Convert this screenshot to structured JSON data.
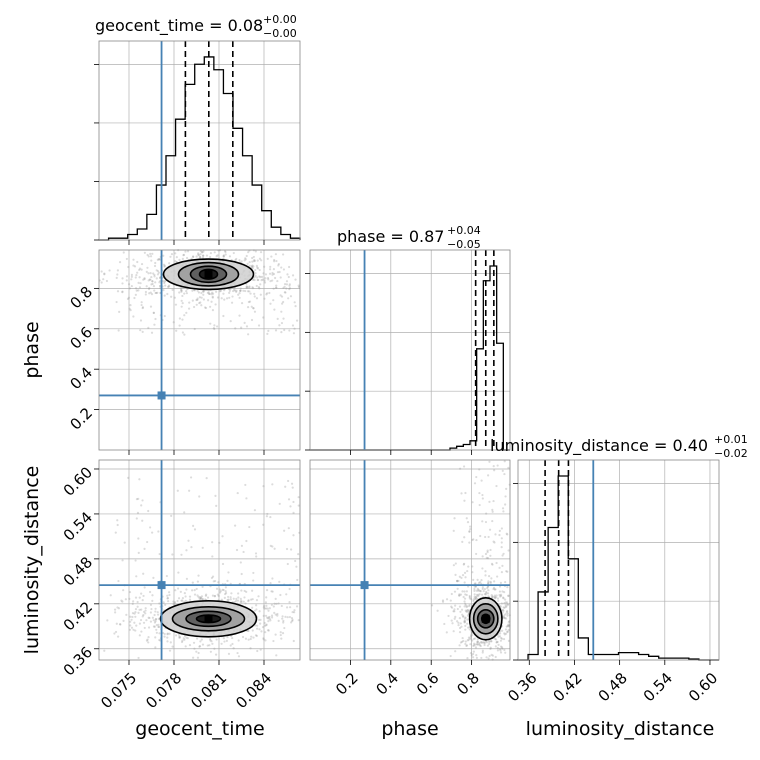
{
  "chart_data": {
    "type": "corner",
    "parameters": [
      {
        "name": "geocent_time",
        "label": "geocent_time",
        "title_name": "geocent_time",
        "median": "0.08",
        "plus": "+0.00",
        "minus": "−0.00",
        "range": [
          0.073,
          0.0864
        ],
        "ticks": [
          0.075,
          0.078,
          0.081,
          0.084
        ],
        "tick_labels": [
          "0.075",
          "0.078",
          "0.081",
          "0.084"
        ],
        "truth": 0.07717,
        "quantiles": [
          0.07876,
          0.08032,
          0.08192
        ],
        "hist_counts": [
          0,
          0.01,
          0.01,
          0.03,
          0.06,
          0.14,
          0.3,
          0.46,
          0.66,
          0.85,
          0.96,
          1.0,
          0.93,
          0.8,
          0.61,
          0.46,
          0.3,
          0.16,
          0.07,
          0.03,
          0.01
        ]
      },
      {
        "name": "phase",
        "label": "phase",
        "title_name": "phase",
        "median": "0.87",
        "plus": "+0.04",
        "minus": "−0.05",
        "range": [
          0.0,
          0.99
        ],
        "ticks_x": [
          0.2,
          0.4,
          0.6,
          0.8
        ],
        "tick_labels_x": [
          "0.2",
          "0.4",
          "0.6",
          "0.8"
        ],
        "ticks_y": [
          0.2,
          0.4,
          0.6,
          0.8
        ],
        "tick_labels_y": [
          "0.2",
          "0.4",
          "0.6",
          "0.8"
        ],
        "truth": 0.27,
        "quantiles": [
          0.82,
          0.87,
          0.91
        ],
        "hist_counts": [
          0,
          0,
          0,
          0,
          0,
          0,
          0,
          0,
          0,
          0,
          0,
          0,
          0,
          0,
          0,
          0,
          0,
          0,
          0,
          0,
          0,
          0.01,
          0.02,
          0.03,
          0.05,
          0.55,
          0.92,
          1.0,
          0.58,
          0
        ]
      },
      {
        "name": "luminosity_distance",
        "label": "luminosity_distance",
        "title_name": "luminosity_distance",
        "median": "0.40",
        "plus": "+0.01",
        "minus": "−0.02",
        "range": [
          0.345,
          0.612
        ],
        "ticks": [
          0.36,
          0.42,
          0.48,
          0.54,
          0.6
        ],
        "tick_labels": [
          "0.36",
          "0.42",
          "0.48",
          "0.54",
          "0.60"
        ],
        "truth": 0.445,
        "quantiles": [
          0.381,
          0.399,
          0.412
        ],
        "hist_counts": [
          0,
          0.03,
          0.37,
          0.72,
          1.0,
          0.55,
          0.12,
          0.03,
          0.03,
          0.03,
          0.04,
          0.04,
          0.03,
          0.02,
          0.01,
          0.01,
          0.01,
          0.005,
          0,
          0
        ]
      }
    ],
    "pairs": [
      {
        "x": "geocent_time",
        "y": "phase",
        "center": [
          0.0803,
          0.87
        ],
        "contours": [
          [
            0.0006,
            0.024
          ],
          [
            0.0012,
            0.04
          ],
          [
            0.002,
            0.058
          ],
          [
            0.003,
            0.075
          ]
        ]
      },
      {
        "x": "geocent_time",
        "y": "luminosity_distance",
        "center": [
          0.0803,
          0.4
        ],
        "contours": [
          [
            0.0008,
            0.005
          ],
          [
            0.0015,
            0.01
          ],
          [
            0.0024,
            0.016
          ],
          [
            0.0032,
            0.024
          ]
        ]
      },
      {
        "x": "phase",
        "y": "luminosity_distance",
        "center": [
          0.87,
          0.4
        ],
        "contours": [
          [
            0.02,
            0.006
          ],
          [
            0.04,
            0.012
          ],
          [
            0.06,
            0.02
          ],
          [
            0.08,
            0.028
          ]
        ]
      }
    ],
    "grid": true
  }
}
